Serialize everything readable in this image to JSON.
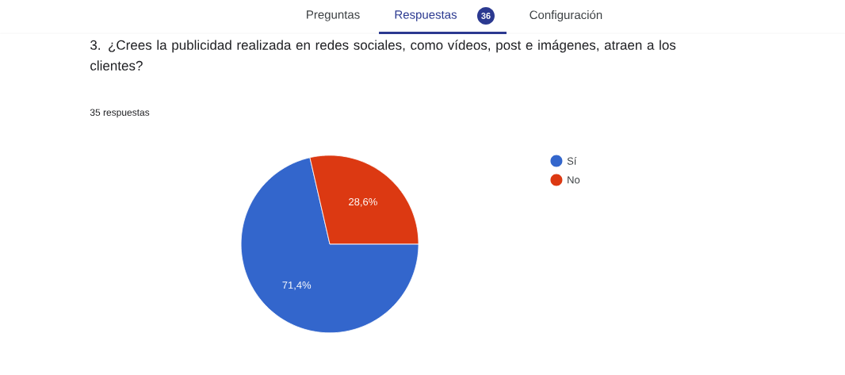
{
  "chart_data": {
    "type": "pie",
    "title": "3. ¿Crees la publicidad realizada en redes sociales, como vídeos, post e imágenes, atraen a los clientes?",
    "subtitle": "35 respuestas",
    "categories": [
      "Sí",
      "No"
    ],
    "values": [
      71.4,
      28.6
    ],
    "colors": [
      "#3366cc",
      "#dc3912"
    ],
    "value_labels": [
      "71,4%",
      "28,6%"
    ],
    "legend": "right",
    "annotations": [
      "Preguntas",
      "Respuestas",
      "36",
      "Configuración"
    ]
  }
}
